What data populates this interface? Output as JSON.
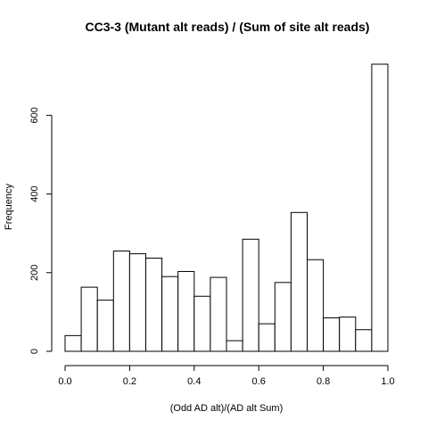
{
  "chart_data": {
    "type": "bar",
    "title": "CC3-3 (Mutant alt reads) / (Sum of site alt reads)",
    "xlabel": "(Odd AD alt)/(AD alt Sum)",
    "ylabel": "Frequency",
    "bin_edges": [
      0.0,
      0.05,
      0.1,
      0.15,
      0.2,
      0.25,
      0.3,
      0.35,
      0.4,
      0.45,
      0.5,
      0.55,
      0.6,
      0.65,
      0.7,
      0.75,
      0.8,
      0.85,
      0.9,
      0.95,
      1.0
    ],
    "values": [
      40,
      163,
      130,
      255,
      248,
      237,
      190,
      203,
      140,
      188,
      27,
      285,
      70,
      175,
      353,
      233,
      85,
      87,
      55,
      730
    ],
    "xlim": [
      0.0,
      1.0
    ],
    "ylim": [
      0,
      730
    ],
    "x_ticks": [
      0.0,
      0.2,
      0.4,
      0.6,
      0.8,
      1.0
    ],
    "x_tick_labels": [
      "0.0",
      "0.2",
      "0.4",
      "0.6",
      "0.8",
      "1.0"
    ],
    "y_ticks": [
      0,
      200,
      400,
      600
    ],
    "y_tick_labels": [
      "0",
      "200",
      "400",
      "600"
    ],
    "grid": false,
    "legend": "none"
  }
}
